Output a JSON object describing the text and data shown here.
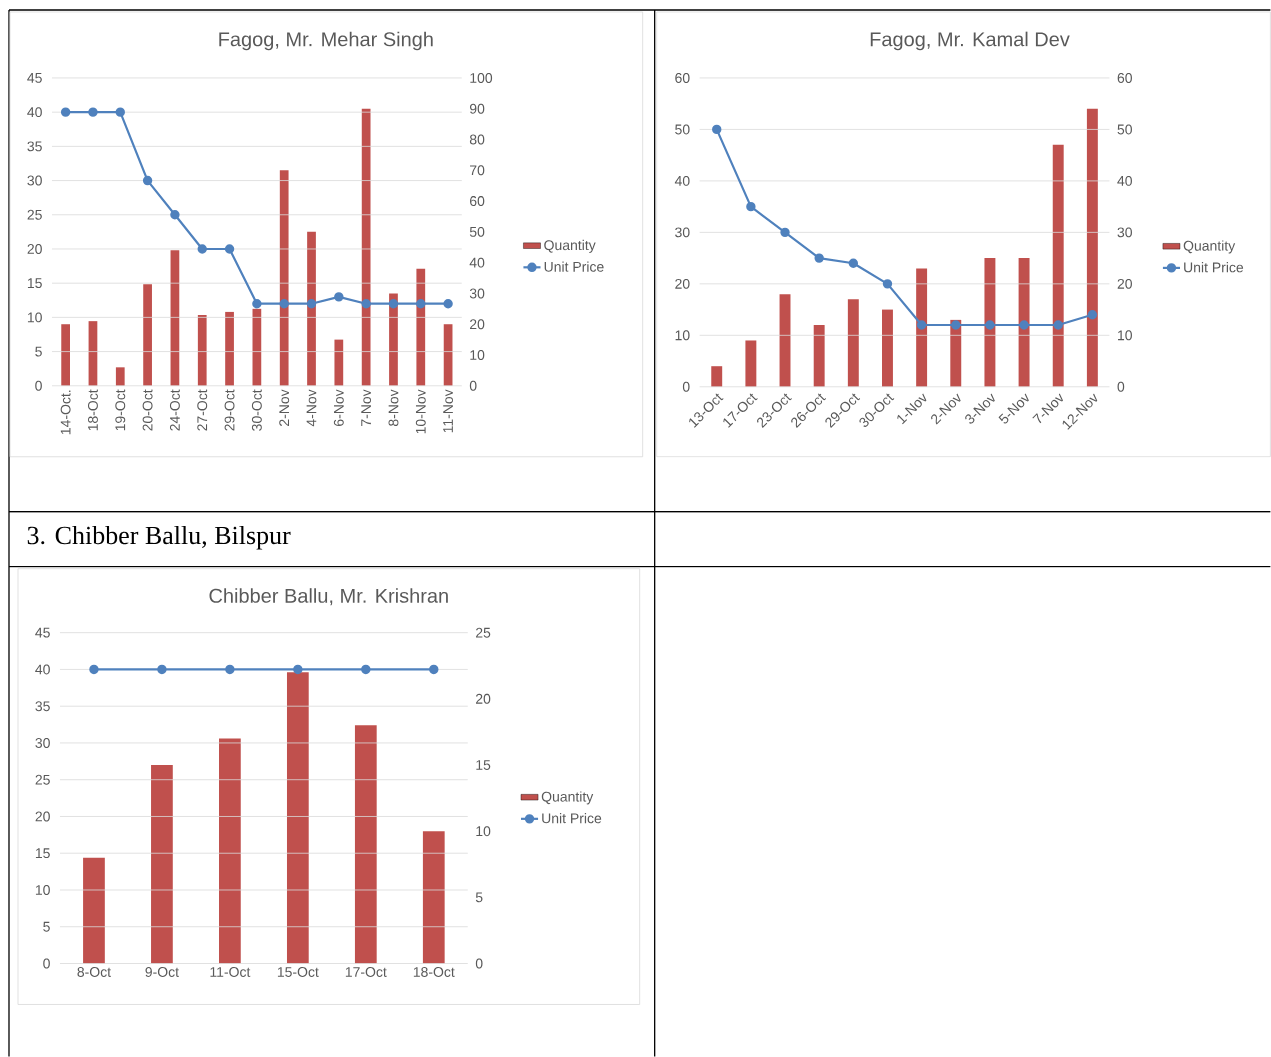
{
  "chart_data": [
    {
      "type": "bar",
      "title": "Fagog, Mr. Mehar Singh",
      "categories": [
        "14-Oct.",
        "18-Oct",
        "19-Oct",
        "20-Oct",
        "24-Oct",
        "27-Oct",
        "29-Oct",
        "30-Oct",
        "2-Nov",
        "4-Nov",
        "6-Nov",
        "7-Nov",
        "8-Nov",
        "10-Nov",
        "11-Nov"
      ],
      "series": [
        {
          "name": "Quantity",
          "axis": "y2",
          "color": "#c0504d",
          "values": [
            20,
            21,
            6,
            33,
            44,
            23,
            24,
            25,
            70,
            50,
            15,
            90,
            30,
            38,
            20
          ]
        },
        {
          "name": "Unit Price",
          "type": "line",
          "color": "#4f81bd",
          "values": [
            40,
            40,
            40,
            30,
            25,
            20,
            20,
            12,
            12,
            12,
            13,
            12,
            12,
            12,
            12
          ]
        }
      ],
      "ylim": [
        0,
        45
      ],
      "yticks": [
        0,
        5,
        10,
        15,
        20,
        25,
        30,
        35,
        40,
        45
      ],
      "y2lim": [
        0,
        100
      ],
      "y2ticks": [
        0,
        10,
        20,
        30,
        40,
        50,
        60,
        70,
        80,
        90,
        100
      ],
      "grid": "y",
      "legend": "right",
      "marker": "circle"
    },
    {
      "type": "bar",
      "title": "Fagog, Mr. Kamal Dev",
      "categories": [
        "13-Oct",
        "17-Oct",
        "23-Oct",
        "26-Oct",
        "29-Oct",
        "30-Oct",
        "1-Nov",
        "2-Nov",
        "3-Nov",
        "5-Nov",
        "7-Nov",
        "12-Nov"
      ],
      "series": [
        {
          "name": "Quantity",
          "axis": "y2",
          "color": "#c0504d",
          "values": [
            4,
            9,
            18,
            12,
            17,
            15,
            23,
            13,
            25,
            25,
            47,
            54
          ]
        },
        {
          "name": "Unit Price",
          "type": "line",
          "color": "#4f81bd",
          "values": [
            50,
            35,
            30,
            25,
            24,
            20,
            12,
            12,
            12,
            12,
            12,
            14
          ]
        }
      ],
      "ylim": [
        0,
        60
      ],
      "yticks": [
        0,
        10,
        20,
        30,
        40,
        50,
        60
      ],
      "y2lim": [
        0,
        60
      ],
      "y2ticks": [
        0,
        10,
        20,
        30,
        40,
        50,
        60
      ],
      "grid": "y",
      "legend": "right",
      "marker": "circle"
    },
    {
      "type": "bar",
      "title": "Chibber Ballu, Mr. Krishran",
      "annotations": [
        "3. Chibber Ballu, Bilspur"
      ],
      "categories": [
        "8-Oct",
        "9-Oct",
        "11-Oct",
        "15-Oct",
        "17-Oct",
        "18-Oct"
      ],
      "series": [
        {
          "name": "Quantity",
          "axis": "y2",
          "color": "#c0504d",
          "values": [
            8,
            15,
            17,
            22,
            18,
            10
          ]
        },
        {
          "name": "Unit Price",
          "type": "line",
          "color": "#4f81bd",
          "values": [
            40,
            40,
            40,
            40,
            40,
            40
          ]
        }
      ],
      "ylim": [
        0,
        45
      ],
      "yticks": [
        0,
        5,
        10,
        15,
        20,
        25,
        30,
        35,
        40,
        45
      ],
      "y2lim": [
        0,
        25
      ],
      "y2ticks": [
        0,
        5,
        10,
        15,
        20,
        25
      ],
      "grid": "y",
      "legend": "right",
      "marker": "circle"
    }
  ]
}
